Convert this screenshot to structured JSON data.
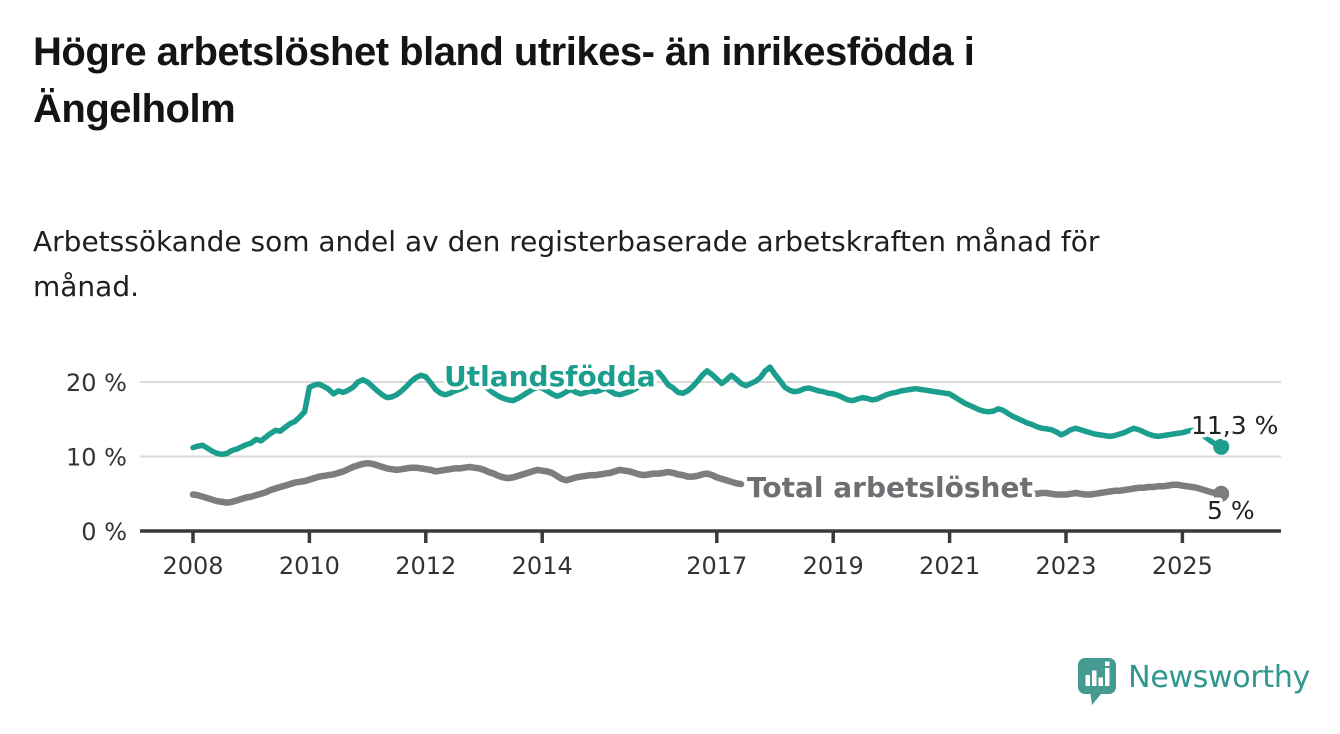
{
  "footer": {
    "brand": "Newsworthy"
  },
  "chart_data": {
    "type": "line",
    "title": "Högre arbetslöshet bland utrikes- än inrikesfödda i\nÄngelholm",
    "subtitle": "Arbetssökande som andel av den registerbaserade arbetskraften månad för\nmånad.",
    "unit": "%",
    "x_start": "2008-01",
    "x_step_months": 1,
    "x_ticks": [
      {
        "year": 2008,
        "label": "2008"
      },
      {
        "year": 2010,
        "label": "2010"
      },
      {
        "year": 2012,
        "label": "2012"
      },
      {
        "year": 2014,
        "label": "2014"
      },
      {
        "year": 2017,
        "label": "2017"
      },
      {
        "year": 2019,
        "label": "2019"
      },
      {
        "year": 2021,
        "label": "2021"
      },
      {
        "year": 2023,
        "label": "2023"
      },
      {
        "year": 2025,
        "label": "2025"
      }
    ],
    "y_ticks": [
      {
        "value": 0,
        "label": "0 %"
      },
      {
        "value": 10,
        "label": "10 %"
      },
      {
        "value": 20,
        "label": "20 %"
      }
    ],
    "grid_values": [
      10,
      20
    ],
    "ylim": [
      0,
      24
    ],
    "legend_position": "inline-labels",
    "series": [
      {
        "name": "Utlandsfödda",
        "color": "#1b9e8e",
        "end_label": "11,3 %",
        "last_value": 11.3,
        "values": [
          11.2,
          11.4,
          11.5,
          11.1,
          10.7,
          10.4,
          10.3,
          10.4,
          10.8,
          11.0,
          11.3,
          11.6,
          11.8,
          12.3,
          12.1,
          12.6,
          13.1,
          13.5,
          13.4,
          13.9,
          14.4,
          14.7,
          15.3,
          16.0,
          19.3,
          19.6,
          19.7,
          19.4,
          19.0,
          18.4,
          18.8,
          18.6,
          18.9,
          19.3,
          20.0,
          20.3,
          20.0,
          19.4,
          18.8,
          18.3,
          17.9,
          18.0,
          18.3,
          18.8,
          19.4,
          20.1,
          20.6,
          20.9,
          20.7,
          19.9,
          19.0,
          18.5,
          18.3,
          18.5,
          18.8,
          19.0,
          19.3,
          19.6,
          19.8,
          19.9,
          19.6,
          19.0,
          18.5,
          18.1,
          17.8,
          17.6,
          17.5,
          17.8,
          18.2,
          18.6,
          19.0,
          19.3,
          19.2,
          18.8,
          18.4,
          18.1,
          18.3,
          18.7,
          19.0,
          18.6,
          18.4,
          18.6,
          18.8,
          18.7,
          18.9,
          19.2,
          18.8,
          18.4,
          18.3,
          18.5,
          18.7,
          19.0,
          19.4,
          19.9,
          20.6,
          21.2,
          21.3,
          20.5,
          19.6,
          19.2,
          18.6,
          18.5,
          18.8,
          19.4,
          20.1,
          20.9,
          21.5,
          21.0,
          20.4,
          19.8,
          20.3,
          20.9,
          20.4,
          19.8,
          19.5,
          19.8,
          20.1,
          20.6,
          21.5,
          22.0,
          21.0,
          20.2,
          19.3,
          18.9,
          18.7,
          18.8,
          19.1,
          19.2,
          19.0,
          18.8,
          18.7,
          18.5,
          18.4,
          18.2,
          17.9,
          17.6,
          17.5,
          17.7,
          17.9,
          17.8,
          17.6,
          17.7,
          18.0,
          18.3,
          18.5,
          18.6,
          18.8,
          18.9,
          19.0,
          19.1,
          19.0,
          18.9,
          18.8,
          18.7,
          18.6,
          18.5,
          18.4,
          18.0,
          17.6,
          17.2,
          16.9,
          16.6,
          16.3,
          16.1,
          16.0,
          16.1,
          16.4,
          16.2,
          15.8,
          15.4,
          15.1,
          14.8,
          14.5,
          14.3,
          14.0,
          13.8,
          13.7,
          13.6,
          13.3,
          12.9,
          13.2,
          13.6,
          13.8,
          13.6,
          13.4,
          13.2,
          13.0,
          12.9,
          12.8,
          12.7,
          12.8,
          13.0,
          13.2,
          13.5,
          13.8,
          13.6,
          13.3,
          13.0,
          12.8,
          12.7,
          12.8,
          12.9,
          13.0,
          13.1,
          13.2,
          13.4,
          13.5,
          13.4,
          13.0,
          12.5,
          12.0,
          11.6,
          11.3
        ]
      },
      {
        "name": "Total arbetslöshet",
        "color": "#7d7d7d",
        "label_color": "#6e6e73",
        "end_label": "5 %",
        "last_value": 5.0,
        "values": [
          4.9,
          4.8,
          4.6,
          4.4,
          4.2,
          4.0,
          3.9,
          3.8,
          3.9,
          4.1,
          4.3,
          4.5,
          4.6,
          4.8,
          5.0,
          5.2,
          5.5,
          5.7,
          5.9,
          6.1,
          6.3,
          6.5,
          6.6,
          6.7,
          6.9,
          7.1,
          7.3,
          7.4,
          7.5,
          7.6,
          7.8,
          8.0,
          8.3,
          8.6,
          8.8,
          9.0,
          9.1,
          9.0,
          8.8,
          8.6,
          8.4,
          8.3,
          8.2,
          8.3,
          8.4,
          8.5,
          8.5,
          8.4,
          8.3,
          8.2,
          8.0,
          8.1,
          8.2,
          8.3,
          8.4,
          8.4,
          8.5,
          8.6,
          8.5,
          8.4,
          8.2,
          7.9,
          7.7,
          7.4,
          7.2,
          7.1,
          7.2,
          7.4,
          7.6,
          7.8,
          8.0,
          8.2,
          8.1,
          8.0,
          7.8,
          7.4,
          7.0,
          6.8,
          7.0,
          7.2,
          7.3,
          7.4,
          7.5,
          7.5,
          7.6,
          7.7,
          7.8,
          8.0,
          8.2,
          8.1,
          8.0,
          7.8,
          7.6,
          7.5,
          7.6,
          7.7,
          7.7,
          7.8,
          7.9,
          7.8,
          7.6,
          7.5,
          7.3,
          7.3,
          7.4,
          7.6,
          7.7,
          7.5,
          7.2,
          7.0,
          6.8,
          6.6,
          6.4,
          6.3,
          null,
          null,
          null,
          null,
          null,
          null,
          null,
          null,
          null,
          null,
          null,
          null,
          null,
          null,
          null,
          null,
          null,
          null,
          null,
          null,
          null,
          null,
          null,
          null,
          null,
          null,
          null,
          null,
          null,
          null,
          null,
          null,
          null,
          null,
          null,
          null,
          null,
          null,
          null,
          null,
          null,
          null,
          null,
          null,
          null,
          null,
          null,
          null,
          null,
          null,
          null,
          null,
          null,
          null,
          null,
          5.1,
          5.0,
          4.9,
          4.9,
          5.0,
          5.0,
          5.1,
          5.1,
          5.0,
          4.9,
          4.9,
          4.9,
          5.0,
          5.1,
          5.0,
          4.9,
          4.9,
          5.0,
          5.1,
          5.2,
          5.3,
          5.4,
          5.4,
          5.5,
          5.6,
          5.7,
          5.8,
          5.8,
          5.9,
          5.9,
          6.0,
          6.0,
          6.1,
          6.2,
          6.2,
          6.1,
          6.0,
          5.9,
          5.8,
          5.6,
          5.4,
          5.2,
          5.1,
          5.0
        ]
      }
    ]
  }
}
